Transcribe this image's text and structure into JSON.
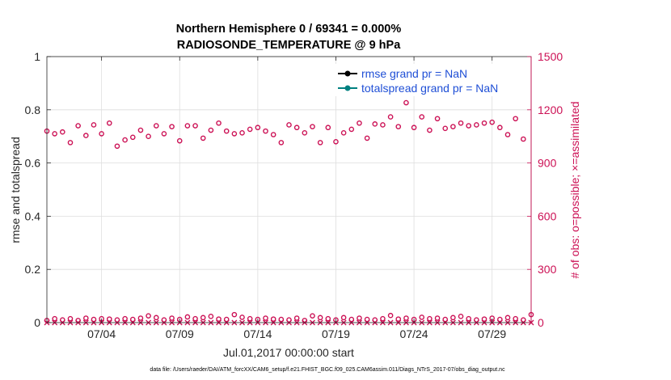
{
  "chart_data": {
    "type": "scatter",
    "title": [
      "Northern Hemisphere 0 / 69341 = 0.000%",
      "RADIOSONDE_TEMPERATURE @ 9 hPa"
    ],
    "xlabel": "Jul.01,2017 00:00:00 start",
    "ylabel_left": "rmse and totalspread",
    "ylabel_right": "# of obs: o=possible; ×=assimilated",
    "xlim": [
      0.5,
      31.5
    ],
    "ylim_left": [
      0,
      1
    ],
    "ylim_right": [
      0,
      1500
    ],
    "x_ticks": [
      {
        "x": 4,
        "label": "07/04"
      },
      {
        "x": 9,
        "label": "07/09"
      },
      {
        "x": 14,
        "label": "07/14"
      },
      {
        "x": 19,
        "label": "07/19"
      },
      {
        "x": 24,
        "label": "07/24"
      },
      {
        "x": 29,
        "label": "07/29"
      }
    ],
    "y_ticks_left": [
      {
        "v": 0,
        "label": "0"
      },
      {
        "v": 0.2,
        "label": "0.2"
      },
      {
        "v": 0.4,
        "label": "0.4"
      },
      {
        "v": 0.6,
        "label": "0.6"
      },
      {
        "v": 0.8,
        "label": "0.8"
      },
      {
        "v": 1,
        "label": "1"
      }
    ],
    "y_ticks_right": [
      {
        "v": 0,
        "label": "0"
      },
      {
        "v": 300,
        "label": "300"
      },
      {
        "v": 600,
        "label": "600"
      },
      {
        "v": 900,
        "label": "900"
      },
      {
        "v": 1200,
        "label": "1200"
      },
      {
        "v": 1500,
        "label": "1500"
      }
    ],
    "grid": true,
    "legend_position": "top-right",
    "legend": [
      {
        "label": "rmse grand pr = NaN",
        "color": "#000000"
      },
      {
        "label": "totalspread grand pr = NaN",
        "color": "#008080"
      }
    ],
    "series": [
      {
        "name": "possible",
        "marker": "circle",
        "color": "#cc1155",
        "axis": "right",
        "x": [
          0.5,
          1,
          1.5,
          2,
          2.5,
          3,
          3.5,
          4,
          4.5,
          5,
          5.5,
          6,
          6.5,
          7,
          7.5,
          8,
          8.5,
          9,
          9.5,
          10,
          10.5,
          11,
          11.5,
          12,
          12.5,
          13,
          13.5,
          14,
          14.5,
          15,
          15.5,
          16,
          16.5,
          17,
          17.5,
          18,
          18.5,
          19,
          19.5,
          20,
          20.5,
          21,
          21.5,
          22,
          22.5,
          23,
          23.5,
          24,
          24.5,
          25,
          25.5,
          26,
          26.5,
          27,
          27.5,
          28,
          28.5,
          29,
          29.5,
          30,
          30.5,
          31
        ],
        "y": [
          1080,
          1065,
          1075,
          1015,
          1110,
          1055,
          1115,
          1065,
          1125,
          995,
          1030,
          1045,
          1085,
          1050,
          1110,
          1065,
          1105,
          1025,
          1110,
          1110,
          1040,
          1085,
          1125,
          1080,
          1065,
          1070,
          1090,
          1100,
          1080,
          1060,
          1015,
          1115,
          1100,
          1070,
          1105,
          1015,
          1100,
          1020,
          1070,
          1090,
          1125,
          1040,
          1120,
          1115,
          1160,
          1105,
          1240,
          1100,
          1160,
          1085,
          1150,
          1095,
          1105,
          1125,
          1110,
          1115,
          1125,
          1130,
          1100,
          1060,
          1150,
          1035
        ]
      },
      {
        "name": "possible-low",
        "marker": "circle",
        "color": "#cc1155",
        "axis": "right",
        "x": [
          0.5,
          1,
          1.5,
          2,
          2.5,
          3,
          3.5,
          4,
          4.5,
          5,
          5.5,
          6,
          6.5,
          7,
          7.5,
          8,
          8.5,
          9,
          9.5,
          10,
          10.5,
          11,
          11.5,
          12,
          12.5,
          13,
          13.5,
          14,
          14.5,
          15,
          15.5,
          16,
          16.5,
          17,
          17.5,
          18,
          18.5,
          19,
          19.5,
          20,
          20.5,
          21,
          21.5,
          22,
          22.5,
          23,
          23.5,
          24,
          24.5,
          25,
          25.5,
          26,
          26.5,
          27,
          27.5,
          28,
          28.5,
          29,
          29.5,
          30,
          30.5,
          31,
          31.5
        ],
        "y": [
          12,
          22,
          15,
          22,
          12,
          25,
          18,
          22,
          20,
          15,
          22,
          18,
          25,
          38,
          28,
          15,
          25,
          18,
          32,
          22,
          28,
          35,
          20,
          18,
          45,
          30,
          22,
          18,
          25,
          20,
          18,
          15,
          25,
          12,
          38,
          28,
          22,
          15,
          28,
          18,
          25,
          18,
          15,
          22,
          40,
          20,
          25,
          18,
          30,
          22,
          25,
          18,
          28,
          35,
          22,
          15,
          20,
          25,
          18,
          28,
          22,
          15,
          45
        ]
      },
      {
        "name": "assimilated",
        "marker": "x",
        "color": "#cc1155",
        "axis": "right",
        "x": [
          0.5,
          1,
          1.5,
          2,
          2.5,
          3,
          3.5,
          4,
          4.5,
          5,
          5.5,
          6,
          6.5,
          7,
          7.5,
          8,
          8.5,
          9,
          9.5,
          10,
          10.5,
          11,
          11.5,
          12,
          12.5,
          13,
          13.5,
          14,
          14.5,
          15,
          15.5,
          16,
          16.5,
          17,
          17.5,
          18,
          18.5,
          19,
          19.5,
          20,
          20.5,
          21,
          21.5,
          22,
          22.5,
          23,
          23.5,
          24,
          24.5,
          25,
          25.5,
          26,
          26.5,
          27,
          27.5,
          28,
          28.5,
          29,
          29.5,
          30,
          30.5,
          31,
          31.5
        ],
        "y": [
          0,
          0,
          0,
          0,
          0,
          0,
          0,
          0,
          0,
          0,
          0,
          0,
          0,
          0,
          0,
          0,
          0,
          0,
          0,
          0,
          0,
          0,
          0,
          0,
          0,
          0,
          0,
          0,
          0,
          0,
          0,
          0,
          0,
          0,
          0,
          0,
          0,
          0,
          0,
          0,
          0,
          0,
          0,
          0,
          0,
          0,
          0,
          0,
          0,
          0,
          0,
          0,
          0,
          0,
          0,
          0,
          0,
          0,
          0,
          0,
          0,
          0,
          0
        ]
      }
    ]
  },
  "footer": {
    "data_file": "data file: /Users/raeder/DAI/ATM_forcXX/CAM6_setup/f.e21.FHIST_BGC.f09_025.CAM6assim.011/Diags_NTrS_2017-07/obs_diag_output.nc"
  }
}
